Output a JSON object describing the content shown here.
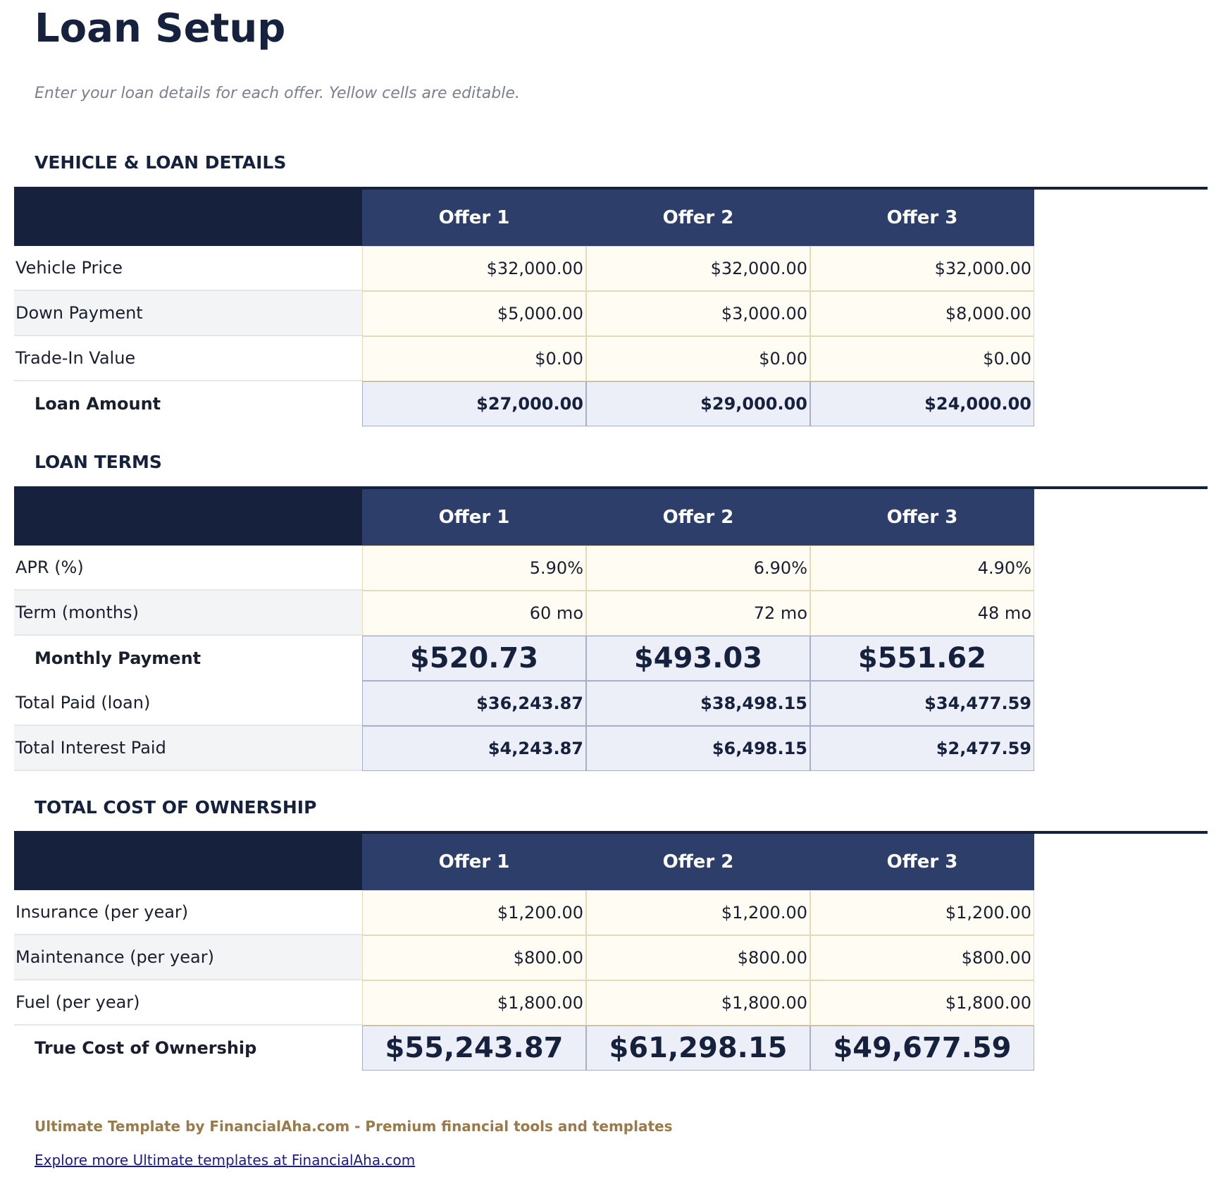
{
  "page": {
    "title": "Loan Setup",
    "subtitle": "Enter your loan details for each offer. Yellow cells are editable."
  },
  "offers": [
    "Offer 1",
    "Offer 2",
    "Offer 3"
  ],
  "vehicle": {
    "heading": "VEHICLE & LOAN DETAILS",
    "rows": [
      {
        "label": "Vehicle Price",
        "values": [
          "$32,000.00",
          "$32,000.00",
          "$32,000.00"
        ]
      },
      {
        "label": "Down Payment",
        "values": [
          "$5,000.00",
          "$3,000.00",
          "$8,000.00"
        ]
      },
      {
        "label": "Trade-In Value",
        "values": [
          "$0.00",
          "$0.00",
          "$0.00"
        ]
      },
      {
        "label": "Loan Amount",
        "values": [
          "$27,000.00",
          "$29,000.00",
          "$24,000.00"
        ]
      }
    ]
  },
  "terms": {
    "heading": "LOAN TERMS",
    "rows": [
      {
        "label": "APR (%)",
        "values": [
          "5.90%",
          "6.90%",
          "4.90%"
        ]
      },
      {
        "label": "Term (months)",
        "values": [
          "60 mo",
          "72 mo",
          "48 mo"
        ]
      },
      {
        "label": "Monthly Payment",
        "values": [
          "$520.73",
          "$493.03",
          "$551.62"
        ]
      },
      {
        "label": "Total Paid (loan)",
        "values": [
          "$36,243.87",
          "$38,498.15",
          "$34,477.59"
        ]
      },
      {
        "label": "Total Interest Paid",
        "values": [
          "$4,243.87",
          "$6,498.15",
          "$2,477.59"
        ]
      }
    ]
  },
  "tco": {
    "heading": "TOTAL COST OF OWNERSHIP",
    "rows": [
      {
        "label": "Insurance (per year)",
        "values": [
          "$1,200.00",
          "$1,200.00",
          "$1,200.00"
        ]
      },
      {
        "label": "Maintenance (per year)",
        "values": [
          "$800.00",
          "$800.00",
          "$800.00"
        ]
      },
      {
        "label": "Fuel (per year)",
        "values": [
          "$1,800.00",
          "$1,800.00",
          "$1,800.00"
        ]
      },
      {
        "label": "True Cost of Ownership",
        "values": [
          "$55,243.87",
          "$61,298.15",
          "$49,677.59"
        ]
      }
    ]
  },
  "footer": {
    "credit": "Ultimate Template by FinancialAha.com - Premium financial tools and templates",
    "link": "Explore more Ultimate templates at FinancialAha.com"
  },
  "colors": {
    "header_dark": "#16213d",
    "header_offer": "#2d3e6b",
    "input_cell": "#fffcf4",
    "calc_cell": "#eceff7",
    "footer_credit": "#9a7a4a"
  }
}
